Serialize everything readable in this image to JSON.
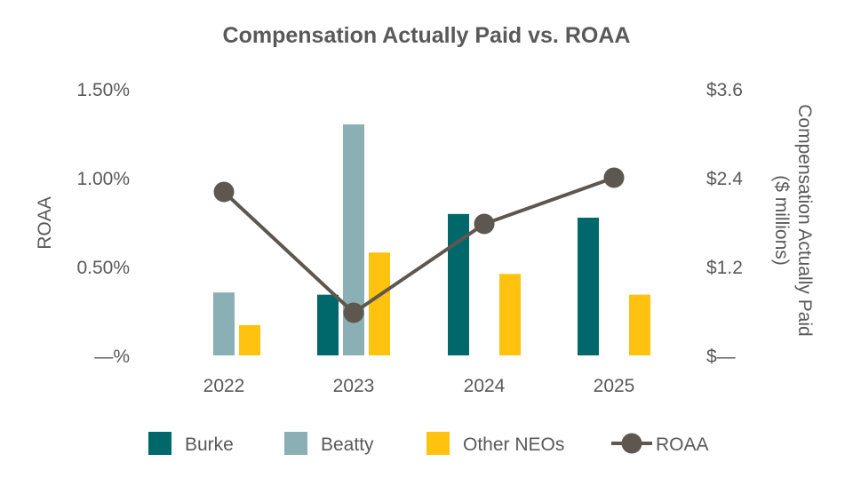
{
  "chart_data": {
    "type": "bar",
    "title": "Compensation Actually Paid vs. ROAA",
    "categories": [
      "2022",
      "2023",
      "2024",
      "2025"
    ],
    "y_left": {
      "label": "ROAA",
      "ticks": [
        {
          "value": 0,
          "label": "—%"
        },
        {
          "value": 0.5,
          "label": "0.50%"
        },
        {
          "value": 1.0,
          "label": "1.00%"
        },
        {
          "value": 1.5,
          "label": "1.50%"
        }
      ],
      "range": [
        0,
        1.5
      ]
    },
    "y_right": {
      "label_line1": "Compensation Actually Paid",
      "label_line2": "($ millions)",
      "ticks": [
        {
          "value": 0,
          "label": "$—"
        },
        {
          "value": 1.2,
          "label": "$1.2"
        },
        {
          "value": 2.4,
          "label": "$2.4"
        },
        {
          "value": 3.6,
          "label": "$3.6"
        }
      ],
      "range": [
        0,
        3.6
      ]
    },
    "series": [
      {
        "name": "Burke",
        "type": "bar",
        "axis": "right",
        "color": "#00686B",
        "values": [
          null,
          0.82,
          1.91,
          1.86
        ]
      },
      {
        "name": "Beatty",
        "type": "bar",
        "axis": "right",
        "color": "#8AAFB4",
        "values": [
          0.85,
          3.12,
          null,
          null
        ]
      },
      {
        "name": "Other NEOs",
        "type": "bar",
        "axis": "right",
        "color": "#FFC20E",
        "values": [
          0.41,
          1.39,
          1.1,
          0.82
        ]
      },
      {
        "name": "ROAA",
        "type": "line",
        "axis": "left",
        "color": "#5E5750",
        "values": [
          0.92,
          0.24,
          0.74,
          1.0
        ]
      }
    ],
    "legend": {
      "position": "bottom"
    },
    "grid": false
  }
}
